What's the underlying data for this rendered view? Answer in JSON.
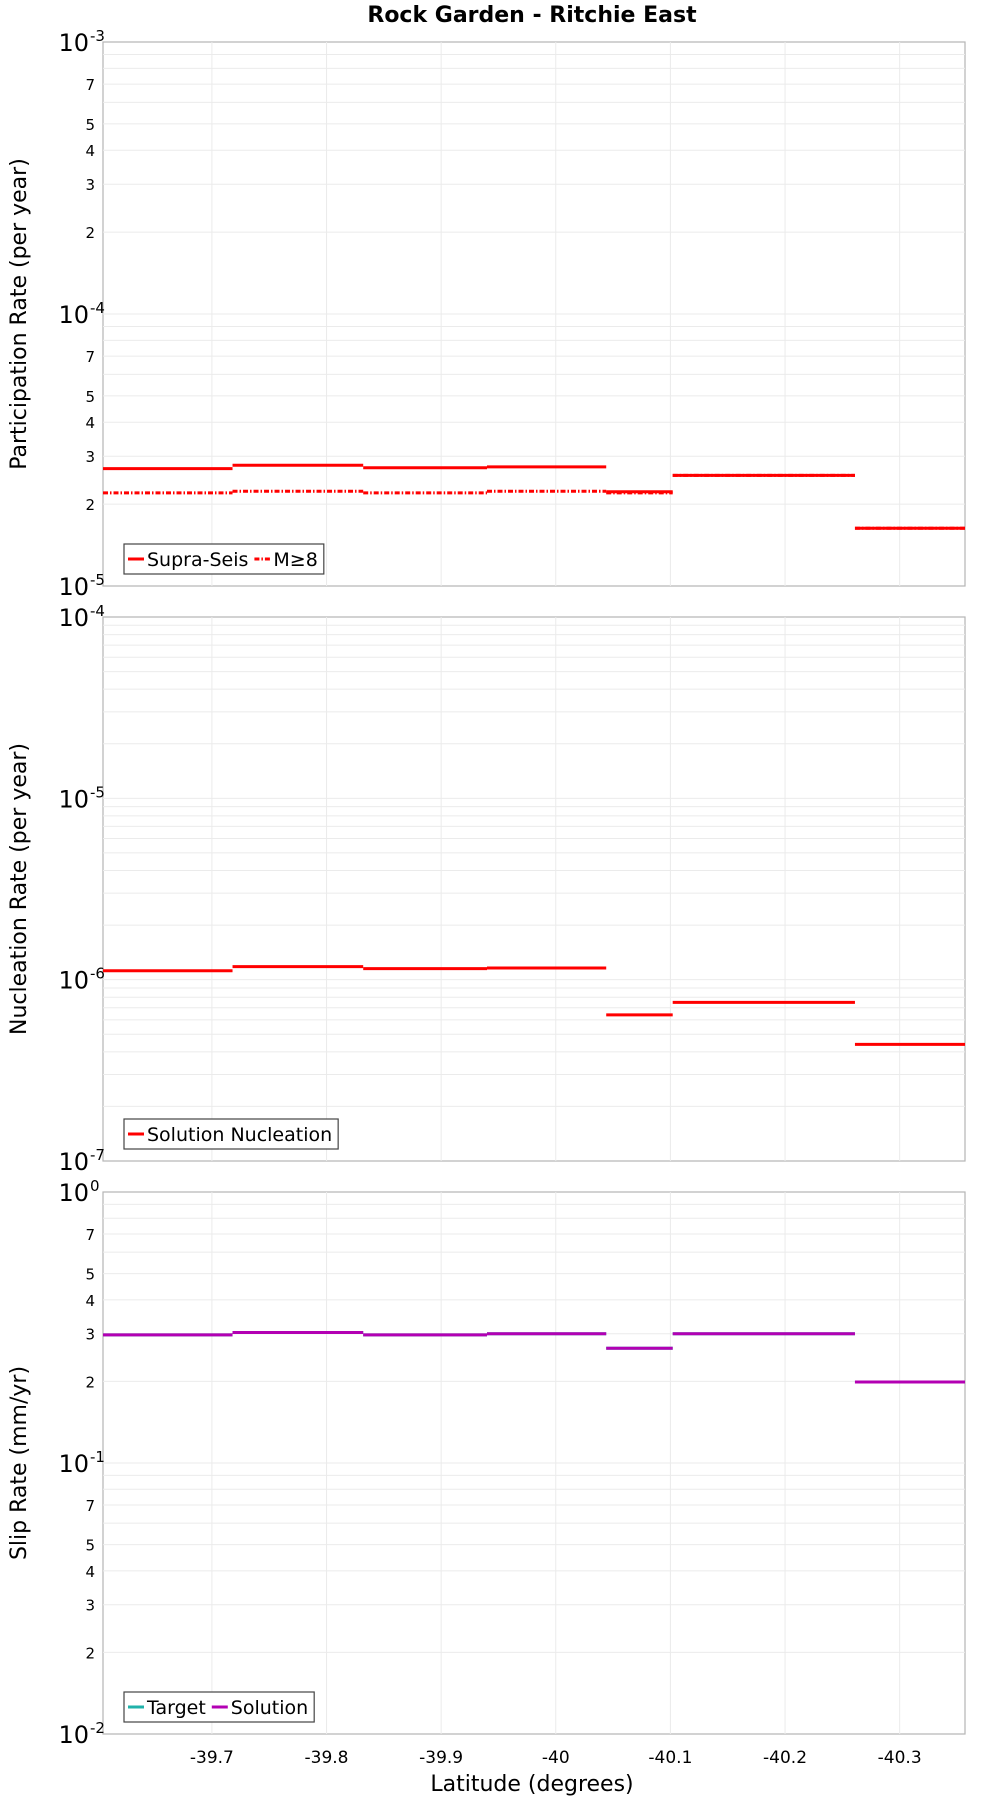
{
  "figure": {
    "title": "Rock Garden - Ritchie East",
    "xlabel": "Latitude (degrees)"
  },
  "chart_data": [
    {
      "type": "line",
      "name": "participation",
      "title": "Rock Garden - Ritchie East",
      "ylabel": "Participation Rate (per year)",
      "xlabel": "",
      "xlim": [
        -39.605,
        -40.357
      ],
      "ylim": [
        1e-05,
        0.001
      ],
      "yscale": "log",
      "series": [
        {
          "name": "Supra-Seis",
          "color": "#ff0000",
          "style": "solid",
          "segments": [
            {
              "x": [
                -39.605,
                -39.718
              ],
              "y": 2.7e-05
            },
            {
              "x": [
                -39.718,
                -39.832
              ],
              "y": 2.78e-05
            },
            {
              "x": [
                -39.832,
                -39.94
              ],
              "y": 2.72e-05
            },
            {
              "x": [
                -39.94,
                -40.044
              ],
              "y": 2.74e-05
            },
            {
              "x": [
                -40.044,
                -40.102
              ],
              "y": 2.22e-05
            },
            {
              "x": [
                -40.102,
                -40.261
              ],
              "y": 2.55e-05
            },
            {
              "x": [
                -40.261,
                -40.357
              ],
              "y": 1.63e-05
            }
          ]
        },
        {
          "name": "M≥8",
          "color": "#ff0000",
          "style": "dashdot",
          "segments": [
            {
              "x": [
                -39.605,
                -39.718
              ],
              "y": 2.2e-05
            },
            {
              "x": [
                -39.718,
                -39.832
              ],
              "y": 2.23e-05
            },
            {
              "x": [
                -39.832,
                -39.94
              ],
              "y": 2.2e-05
            },
            {
              "x": [
                -39.94,
                -40.044
              ],
              "y": 2.23e-05
            },
            {
              "x": [
                -40.044,
                -40.102
              ],
              "y": 2.2e-05
            },
            {
              "x": [
                -40.102,
                -40.261
              ],
              "y": 2.55e-05
            },
            {
              "x": [
                -40.261,
                -40.357
              ],
              "y": 1.63e-05
            }
          ]
        }
      ],
      "legend": [
        "Supra-Seis",
        "M≥8"
      ],
      "legend_position": "bottom-left"
    },
    {
      "type": "line",
      "name": "nucleation",
      "ylabel": "Nucleation Rate (per year)",
      "xlim": [
        -39.605,
        -40.357
      ],
      "ylim": [
        1e-07,
        0.0001
      ],
      "yscale": "log",
      "series": [
        {
          "name": "Solution Nucleation",
          "color": "#ff0000",
          "style": "solid",
          "segments": [
            {
              "x": [
                -39.605,
                -39.718
              ],
              "y": 1.12e-06
            },
            {
              "x": [
                -39.718,
                -39.832
              ],
              "y": 1.18e-06
            },
            {
              "x": [
                -39.832,
                -39.94
              ],
              "y": 1.15e-06
            },
            {
              "x": [
                -39.94,
                -40.044
              ],
              "y": 1.16e-06
            },
            {
              "x": [
                -40.044,
                -40.102
              ],
              "y": 6.4e-07
            },
            {
              "x": [
                -40.102,
                -40.261
              ],
              "y": 7.5e-07
            },
            {
              "x": [
                -40.261,
                -40.357
              ],
              "y": 4.4e-07
            }
          ]
        }
      ],
      "legend": [
        "Solution Nucleation"
      ],
      "legend_position": "bottom-left"
    },
    {
      "type": "line",
      "name": "sliprate",
      "ylabel": "Slip Rate (mm/yr)",
      "xlabel": "Latitude (degrees)",
      "xlim": [
        -39.605,
        -40.357
      ],
      "ylim": [
        0.01,
        1
      ],
      "yscale": "log",
      "xticks": [
        -39.7,
        -39.8,
        -39.9,
        -40,
        -40.1,
        -40.2,
        -40.3
      ],
      "xtick_labels": [
        "-39.7",
        "-39.8",
        "-39.9",
        "-40",
        "-40.1",
        "-40.2",
        "-40.3"
      ],
      "series": [
        {
          "name": "Target",
          "color": "#20b2aa",
          "style": "solid",
          "segments": [
            {
              "x": [
                -39.605,
                -39.718
              ],
              "y": 0.297
            },
            {
              "x": [
                -39.718,
                -39.832
              ],
              "y": 0.303
            },
            {
              "x": [
                -39.832,
                -39.94
              ],
              "y": 0.297
            },
            {
              "x": [
                -39.94,
                -40.044
              ],
              "y": 0.3
            },
            {
              "x": [
                -40.044,
                -40.102
              ],
              "y": 0.265
            },
            {
              "x": [
                -40.102,
                -40.261
              ],
              "y": 0.3
            },
            {
              "x": [
                -40.261,
                -40.357
              ],
              "y": 0.199
            }
          ]
        },
        {
          "name": "Solution",
          "color": "#b300b3",
          "style": "solid",
          "segments": [
            {
              "x": [
                -39.605,
                -39.718
              ],
              "y": 0.297
            },
            {
              "x": [
                -39.718,
                -39.832
              ],
              "y": 0.303
            },
            {
              "x": [
                -39.832,
                -39.94
              ],
              "y": 0.297
            },
            {
              "x": [
                -39.94,
                -40.044
              ],
              "y": 0.3
            },
            {
              "x": [
                -40.044,
                -40.102
              ],
              "y": 0.265
            },
            {
              "x": [
                -40.102,
                -40.261
              ],
              "y": 0.3
            },
            {
              "x": [
                -40.261,
                -40.357
              ],
              "y": 0.199
            }
          ]
        }
      ],
      "legend": [
        "Target",
        "Solution"
      ],
      "legend_position": "bottom-left"
    }
  ]
}
